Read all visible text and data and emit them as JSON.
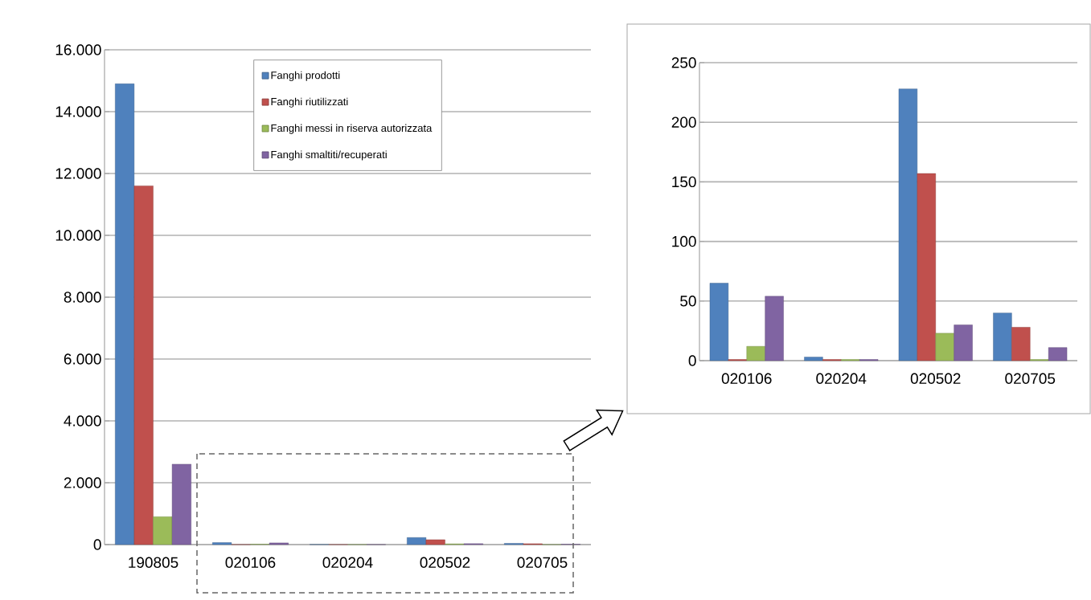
{
  "chart_data": [
    {
      "type": "bar",
      "categories": [
        "190805",
        "020106",
        "020204",
        "020502",
        "020705"
      ],
      "series": [
        {
          "name": "Fanghi prodotti",
          "color": "#4f81bd",
          "values": [
            14900,
            65,
            3,
            228,
            40
          ]
        },
        {
          "name": "Fanghi riutilizzati",
          "color": "#c0504d",
          "values": [
            11600,
            1,
            1,
            157,
            28
          ]
        },
        {
          "name": "Fanghi messi in riserva autorizzata",
          "color": "#9bbb59",
          "values": [
            900,
            12,
            1,
            23,
            1
          ]
        },
        {
          "name": "Fanghi smaltiti/recuperati",
          "color": "#8064a2",
          "values": [
            2600,
            54,
            1,
            30,
            11
          ]
        }
      ],
      "ylim": [
        0,
        16000
      ],
      "yticks": [
        {
          "value": 0,
          "label": "0"
        },
        {
          "value": 2000,
          "label": "2.000"
        },
        {
          "value": 4000,
          "label": "4.000"
        },
        {
          "value": 6000,
          "label": "6.000"
        },
        {
          "value": 8000,
          "label": "8.000"
        },
        {
          "value": 10000,
          "label": "10.000"
        },
        {
          "value": 12000,
          "label": "12.000"
        },
        {
          "value": 14000,
          "label": "14.000"
        },
        {
          "value": 16000,
          "label": "16.000"
        }
      ],
      "grid": "y",
      "legend": "top"
    },
    {
      "type": "bar",
      "categories": [
        "020106",
        "020204",
        "020502",
        "020705"
      ],
      "series": [
        {
          "color": "#4f81bd",
          "values": [
            65,
            3,
            228,
            40
          ]
        },
        {
          "color": "#c0504d",
          "values": [
            1,
            1,
            157,
            28
          ]
        },
        {
          "color": "#9bbb59",
          "values": [
            12,
            1,
            23,
            1
          ]
        },
        {
          "color": "#8064a2",
          "values": [
            54,
            1,
            30,
            11
          ]
        }
      ],
      "ylim": [
        0,
        250
      ],
      "yticks": [
        0,
        50,
        100,
        150,
        200,
        250
      ],
      "grid": "y"
    }
  ]
}
